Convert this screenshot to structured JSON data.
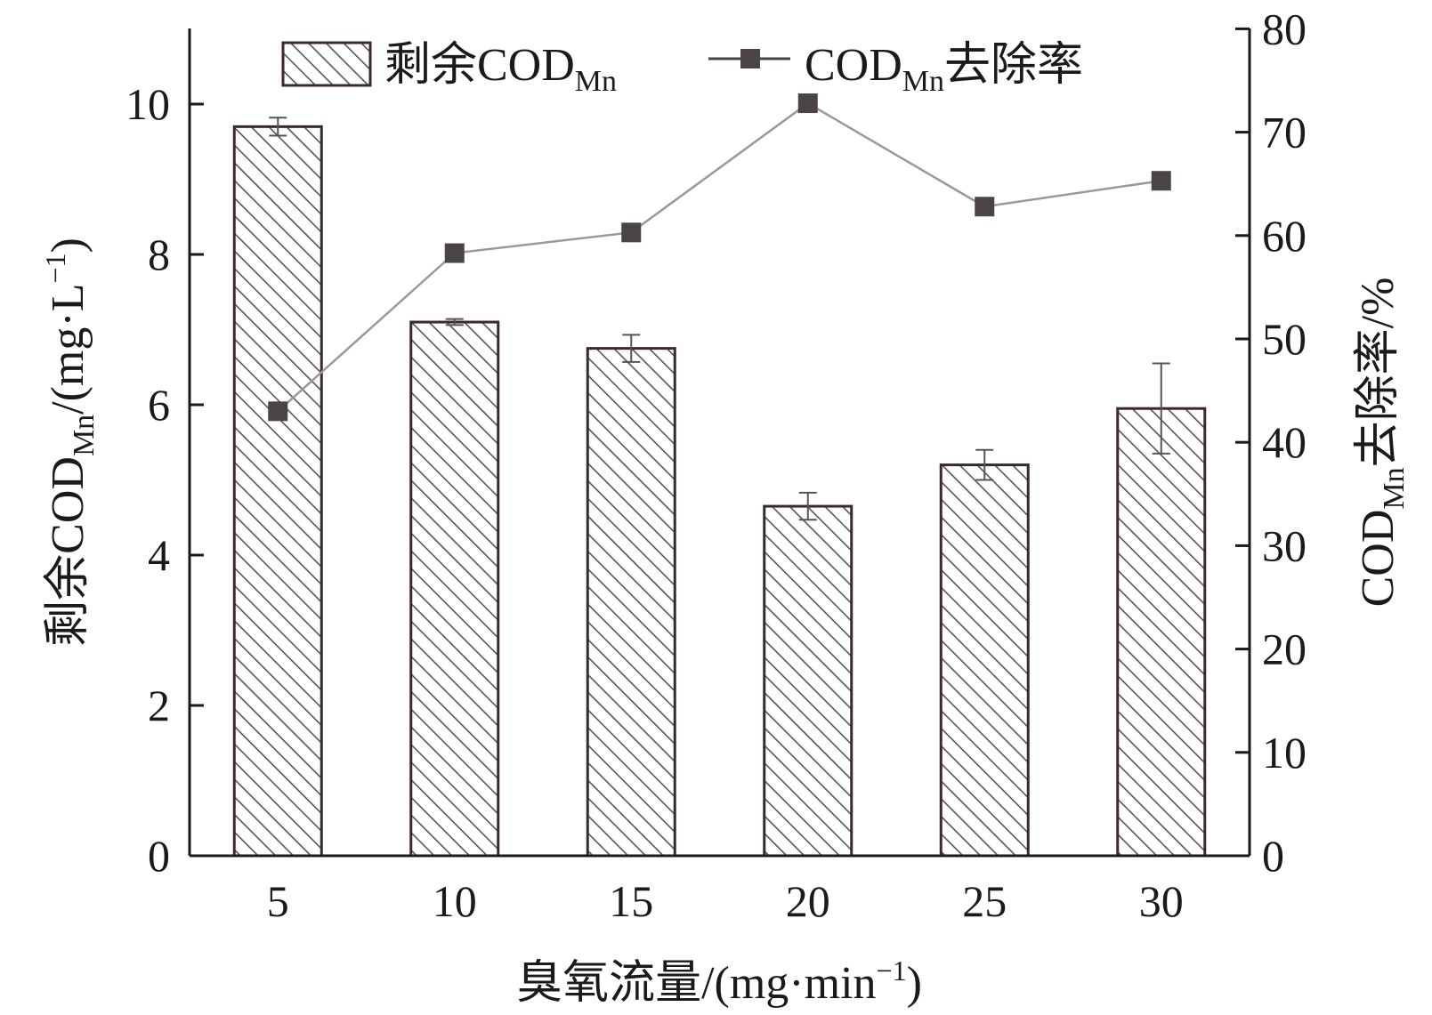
{
  "chart_data": {
    "type": "bar+line",
    "categories": [
      "5",
      "10",
      "15",
      "20",
      "25",
      "30"
    ],
    "series": [
      {
        "name": "剩余COD_Mn",
        "kind": "bar",
        "axis": "left",
        "values": [
          9.7,
          7.1,
          6.75,
          4.65,
          5.2,
          5.95
        ],
        "errors": [
          0.12,
          0.04,
          0.18,
          0.18,
          0.2,
          0.6
        ]
      },
      {
        "name": "COD_Mn去除率",
        "kind": "line",
        "axis": "right",
        "values": [
          43.0,
          58.3,
          60.3,
          72.8,
          62.8,
          65.3
        ]
      }
    ],
    "xlabel": "臭氧流量/(mg·min⁻¹)",
    "ylabel_left": "剩余COD_Mn/(mg·L⁻¹)",
    "ylabel_right": "COD_Mn去除率/%",
    "ylim_left": [
      0,
      11
    ],
    "ylim_right": [
      0,
      80
    ],
    "yticks_left": [
      "0",
      "2",
      "4",
      "6",
      "8",
      "10"
    ],
    "yticks_right": [
      "0",
      "10",
      "20",
      "30",
      "40",
      "50",
      "60",
      "70",
      "80"
    ],
    "legend": {
      "placement": "top-center",
      "bar_label": "剩余COD",
      "bar_sub": "Mn",
      "line_label_main": "COD",
      "line_label_sub": "Mn",
      "line_label_tail": "去除率"
    },
    "axis_titles": {
      "x_text": "臭氧流量/(mg·min",
      "x_sup": "−1",
      "x_tail": ")",
      "left_main": "剩余COD",
      "left_sub": "Mn",
      "left_mid": "/(mg·L",
      "left_sup": "−1",
      "left_tail": ")",
      "right_main": "COD",
      "right_sub": "Mn",
      "right_tail": "去除率/%"
    },
    "grid": false,
    "colors": {
      "bar_edge": "#3a2a2a",
      "hatch": "#555555",
      "line": "#999999",
      "marker": "#4a4444",
      "axis": "#1a1a1a"
    }
  }
}
